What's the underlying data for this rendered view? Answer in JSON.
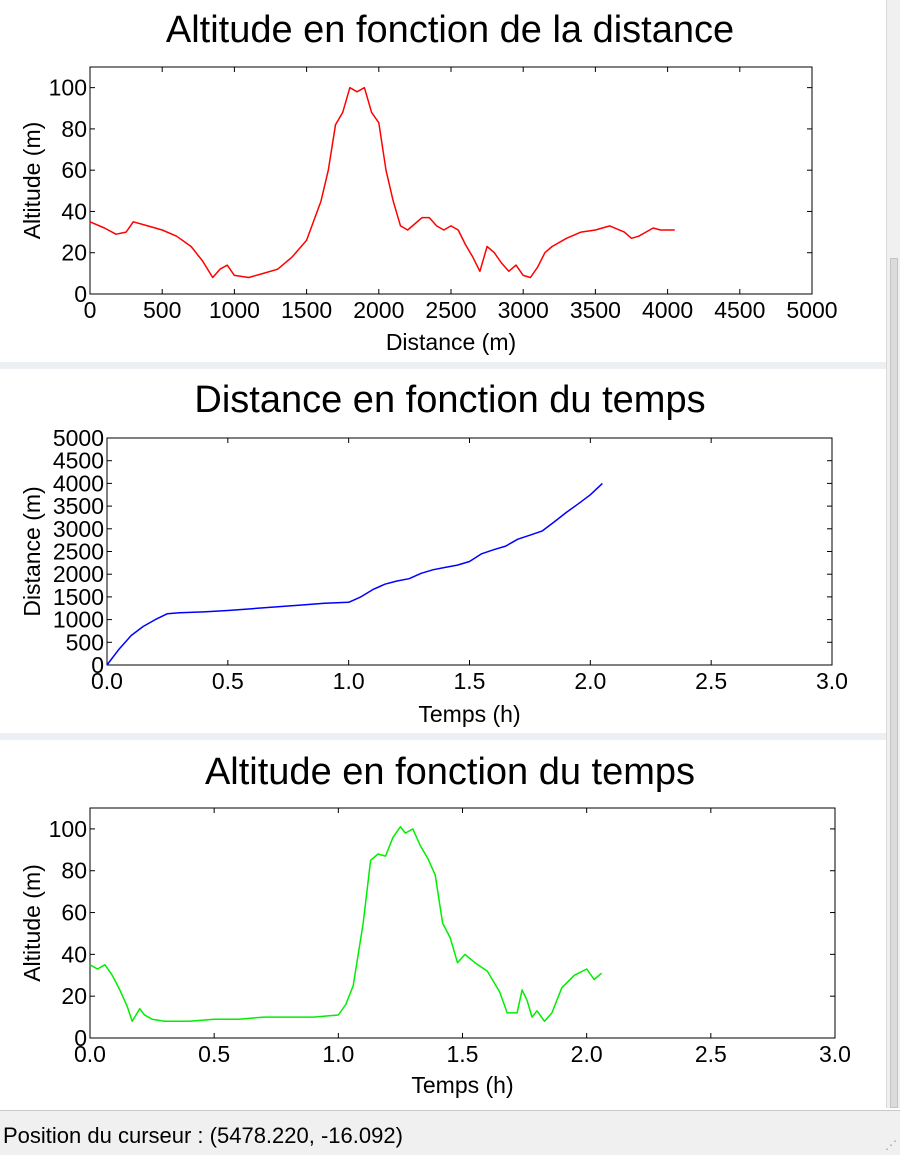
{
  "status_bar": {
    "cursor_text": "Position du curseur : (5478.220, -16.092)"
  },
  "chart_data": [
    {
      "type": "line",
      "title": "Altitude en fonction de la distance",
      "xlabel": "Distance (m)",
      "ylabel": "Altitude (m)",
      "xlim": [
        0,
        5000
      ],
      "ylim": [
        0,
        110
      ],
      "xticks": [
        0,
        500,
        1000,
        1500,
        2000,
        2500,
        3000,
        3500,
        4000,
        4500,
        5000
      ],
      "xticklabels": [
        "0",
        "500",
        "1000",
        "1500",
        "2000",
        "2500",
        "3000",
        "3500",
        "4000",
        "4500",
        "5000"
      ],
      "yticks": [
        0,
        20,
        40,
        60,
        80,
        100
      ],
      "yticklabels": [
        "0",
        "20",
        "40",
        "60",
        "80",
        "100"
      ],
      "grid": false,
      "color": "#ff0000",
      "x": [
        0,
        100,
        180,
        250,
        300,
        400,
        500,
        600,
        700,
        780,
        850,
        900,
        950,
        1000,
        1100,
        1200,
        1300,
        1400,
        1500,
        1600,
        1650,
        1700,
        1750,
        1800,
        1850,
        1900,
        1950,
        2000,
        2050,
        2100,
        2150,
        2200,
        2300,
        2350,
        2400,
        2450,
        2500,
        2550,
        2600,
        2650,
        2700,
        2750,
        2800,
        2850,
        2900,
        2950,
        3000,
        3050,
        3100,
        3150,
        3200,
        3300,
        3400,
        3500,
        3600,
        3700,
        3750,
        3800,
        3850,
        3900,
        3950,
        4000,
        4050
      ],
      "y": [
        35,
        32,
        29,
        30,
        35,
        33,
        31,
        28,
        23,
        16,
        8,
        12,
        14,
        9,
        8,
        10,
        12,
        18,
        26,
        45,
        60,
        82,
        88,
        100,
        98,
        100,
        88,
        83,
        60,
        45,
        33,
        31,
        37,
        37,
        33,
        31,
        33,
        31,
        24,
        18,
        11,
        23,
        20,
        15,
        11,
        14,
        9,
        8,
        13,
        20,
        23,
        27,
        30,
        31,
        33,
        30,
        27,
        28,
        30,
        32,
        31,
        31,
        31
      ]
    },
    {
      "type": "line",
      "title": "Distance en fonction du temps",
      "xlabel": "Temps (h)",
      "ylabel": "Distance (m)",
      "xlim": [
        0,
        3
      ],
      "ylim": [
        0,
        5000
      ],
      "xticks": [
        0,
        0.5,
        1.0,
        1.5,
        2.0,
        2.5,
        3.0
      ],
      "xticklabels": [
        "0.0",
        "0.5",
        "1.0",
        "1.5",
        "2.0",
        "2.5",
        "3.0"
      ],
      "yticks": [
        0,
        500,
        1000,
        1500,
        2000,
        2500,
        3000,
        3500,
        4000,
        4500,
        5000
      ],
      "yticklabels": [
        "0",
        "500",
        "1000",
        "1500",
        "2000",
        "2500",
        "3000",
        "3500",
        "4000",
        "4500",
        "5000"
      ],
      "grid": false,
      "color": "#0000ff",
      "x": [
        0,
        0.05,
        0.1,
        0.15,
        0.2,
        0.25,
        0.3,
        0.4,
        0.5,
        0.6,
        0.7,
        0.8,
        0.9,
        1.0,
        1.05,
        1.1,
        1.15,
        1.2,
        1.25,
        1.3,
        1.35,
        1.4,
        1.45,
        1.5,
        1.55,
        1.6,
        1.65,
        1.7,
        1.75,
        1.8,
        1.85,
        1.9,
        1.95,
        2.0,
        2.05
      ],
      "y": [
        0,
        350,
        650,
        850,
        1000,
        1130,
        1150,
        1170,
        1200,
        1240,
        1280,
        1320,
        1360,
        1380,
        1500,
        1660,
        1780,
        1850,
        1900,
        2020,
        2100,
        2150,
        2200,
        2280,
        2450,
        2540,
        2620,
        2770,
        2860,
        2950,
        3150,
        3360,
        3550,
        3750,
        4000
      ]
    },
    {
      "type": "line",
      "title": "Altitude en fonction du temps",
      "xlabel": "Temps (h)",
      "ylabel": "Altitude (m)",
      "xlim": [
        0,
        3
      ],
      "ylim": [
        0,
        110
      ],
      "xticks": [
        0,
        0.5,
        1.0,
        1.5,
        2.0,
        2.5,
        3.0
      ],
      "xticklabels": [
        "0.0",
        "0.5",
        "1.0",
        "1.5",
        "2.0",
        "2.5",
        "3.0"
      ],
      "yticks": [
        0,
        20,
        40,
        60,
        80,
        100
      ],
      "yticklabels": [
        "0",
        "20",
        "40",
        "60",
        "80",
        "100"
      ],
      "grid": false,
      "color": "#00ee00",
      "x": [
        0,
        0.03,
        0.06,
        0.09,
        0.12,
        0.15,
        0.17,
        0.2,
        0.22,
        0.25,
        0.3,
        0.4,
        0.5,
        0.6,
        0.7,
        0.8,
        0.9,
        1.0,
        1.03,
        1.06,
        1.1,
        1.13,
        1.16,
        1.19,
        1.22,
        1.25,
        1.27,
        1.3,
        1.33,
        1.36,
        1.39,
        1.42,
        1.45,
        1.48,
        1.51,
        1.55,
        1.6,
        1.65,
        1.68,
        1.72,
        1.74,
        1.76,
        1.78,
        1.8,
        1.83,
        1.86,
        1.9,
        1.95,
        2.0,
        2.03,
        2.06
      ],
      "y": [
        35,
        33,
        35,
        30,
        23,
        15,
        8,
        14,
        11,
        9,
        8,
        8,
        9,
        9,
        10,
        10,
        10,
        11,
        16,
        25,
        55,
        85,
        88,
        87,
        96,
        101,
        98,
        100,
        92,
        86,
        78,
        55,
        48,
        36,
        40,
        36,
        32,
        22,
        12,
        12,
        23,
        18,
        10,
        13,
        8,
        12,
        24,
        30,
        33,
        28,
        31
      ]
    }
  ]
}
